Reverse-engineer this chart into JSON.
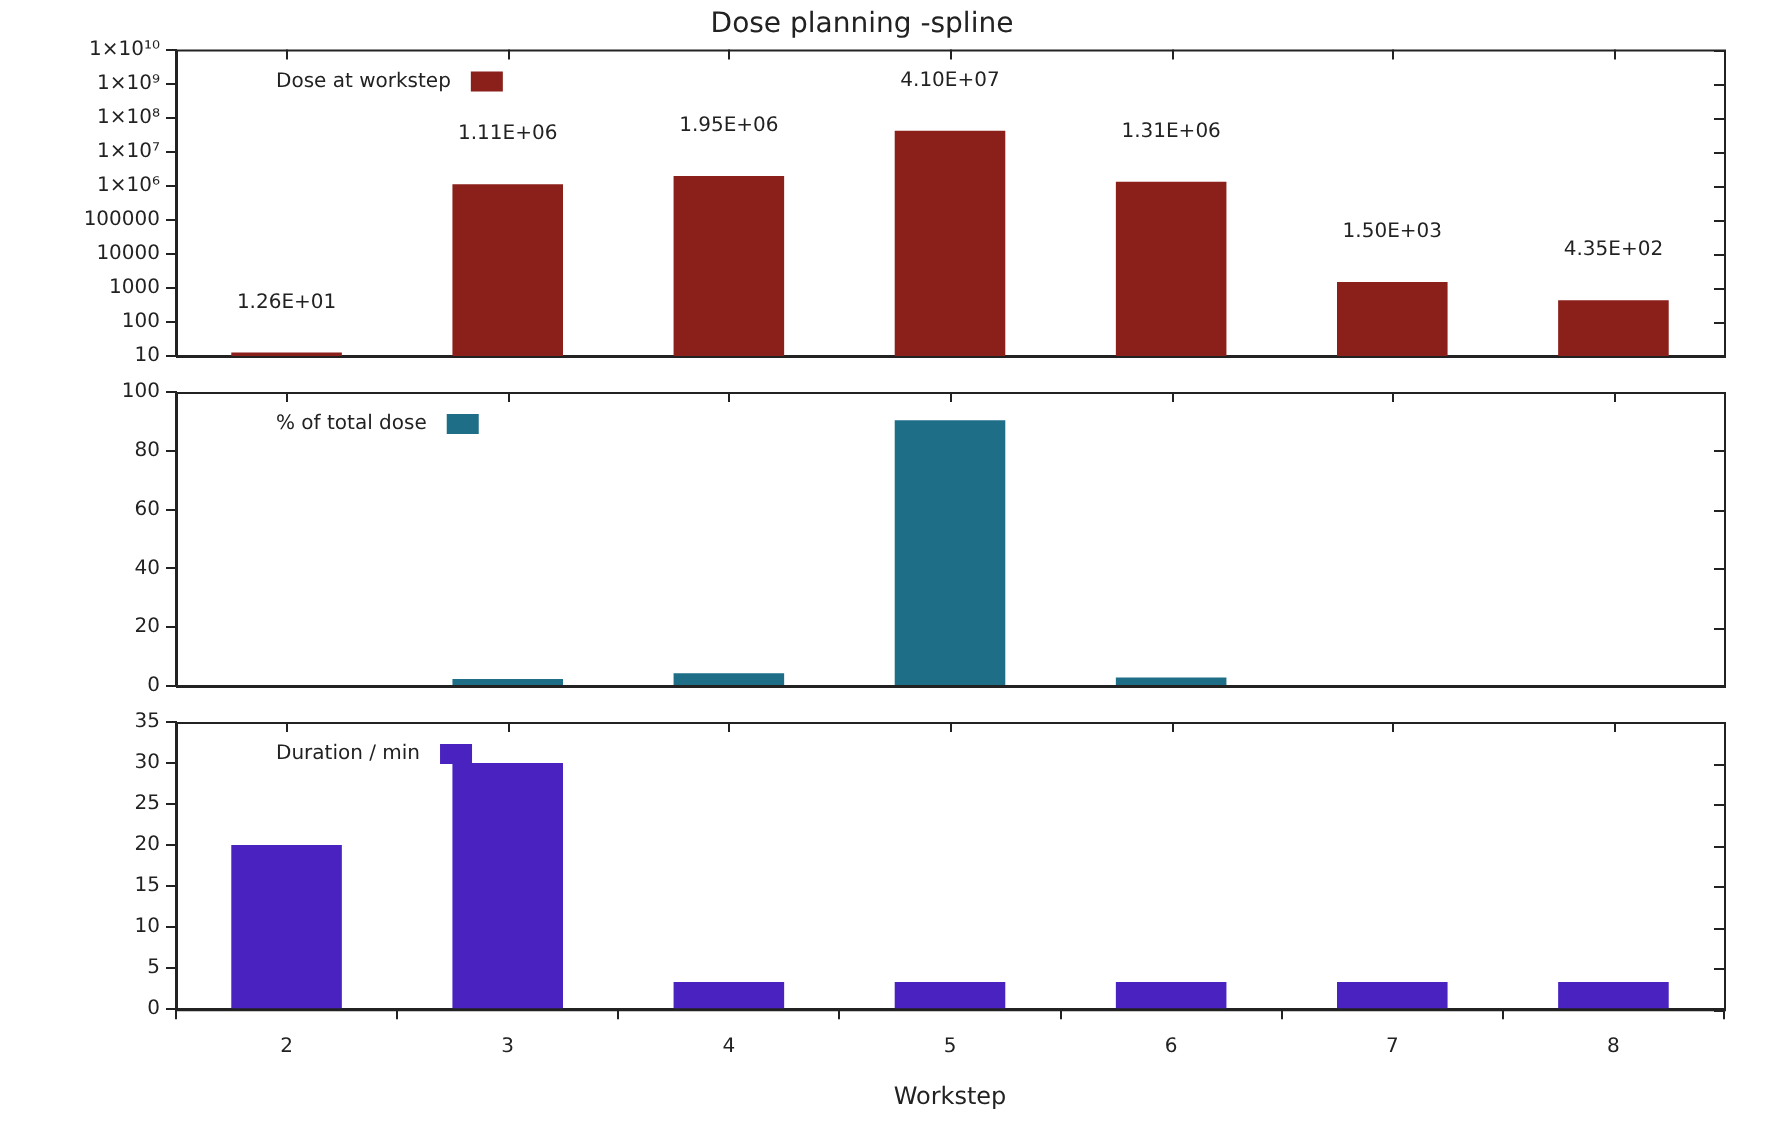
{
  "chart_data": [
    {
      "type": "bar",
      "title": "Dose planning -spline",
      "categories": [
        "2",
        "3",
        "4",
        "5",
        "6",
        "7",
        "8"
      ],
      "series": [
        {
          "name": "Dose at workstep",
          "color": "#8b1f1a",
          "values": [
            12.6,
            1110000,
            1950000,
            41000000,
            1310000,
            1500,
            435
          ],
          "value_labels": [
            "1.26E+01",
            "1.11E+06",
            "1.95E+06",
            "4.10E+07",
            "1.31E+06",
            "1.50E+03",
            "4.35E+02"
          ]
        }
      ],
      "log": "y",
      "ylim": [
        10,
        10000000000
      ],
      "yticks": [
        10,
        100,
        1000,
        10000,
        100000,
        {
          "value": 1000000,
          "label": "1×10⁶"
        },
        {
          "value": 10000000,
          "label": "1×10⁷"
        },
        {
          "value": 100000000,
          "label": "1×10⁸"
        },
        {
          "value": 1000000000,
          "label": "1×10⁹"
        },
        {
          "value": 10000000000,
          "label": "1×10¹⁰"
        }
      ],
      "legend": "top left",
      "tick_labels": "y"
    },
    {
      "type": "bar",
      "categories": [
        "2",
        "3",
        "4",
        "5",
        "6",
        "7",
        "8"
      ],
      "series": [
        {
          "name": "% of total dose",
          "color": "#1e6e87",
          "values": [
            0,
            2.4,
            4.3,
            90.4,
            2.9,
            0,
            0
          ]
        }
      ],
      "ylim": [
        0,
        100
      ],
      "yticks": [
        0,
        20,
        40,
        60,
        80,
        100
      ],
      "legend": "top left",
      "tick_labels": "y"
    },
    {
      "type": "bar",
      "xlabel": "Workstep",
      "categories": [
        "2",
        "3",
        "4",
        "5",
        "6",
        "7",
        "8"
      ],
      "series": [
        {
          "name": "Duration / min",
          "color": "#4a22c0",
          "values": [
            20,
            30,
            3.3,
            3.3,
            3.3,
            3.3,
            3.3
          ]
        }
      ],
      "ylim": [
        0,
        35
      ],
      "yticks": [
        0,
        5,
        10,
        15,
        20,
        25,
        30,
        35
      ],
      "legend": "top left"
    }
  ]
}
